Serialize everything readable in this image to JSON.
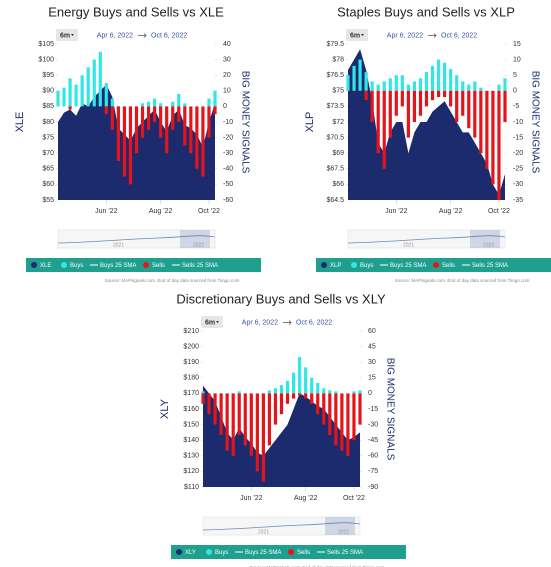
{
  "chart_data": [
    {
      "type": "area-bar",
      "title": "Energy Buys and Sells vs XLE",
      "range_button": "6m",
      "date_range": [
        "Apr 6, 2022",
        "Oct 6, 2022"
      ],
      "y_label": "XLE",
      "y2_label": "BIG MONEY SIGNALS",
      "x": [
        0,
        1,
        2,
        3,
        4,
        5,
        6,
        7,
        8,
        9,
        10,
        11,
        12,
        13,
        14,
        15,
        16,
        17,
        18,
        19,
        20,
        21,
        22,
        23,
        24,
        25,
        26
      ],
      "xlim": [
        0,
        26
      ],
      "xticks": [
        {
          "value": 8,
          "label": "Jun '22"
        },
        {
          "value": 17,
          "label": "Aug '22"
        },
        {
          "value": 25,
          "label": "Oct '22"
        }
      ],
      "ylim": [
        55,
        105
      ],
      "yticks": [
        {
          "value": 55,
          "label": "$55"
        },
        {
          "value": 60,
          "label": "$60"
        },
        {
          "value": 65,
          "label": "$65"
        },
        {
          "value": 70,
          "label": "$70"
        },
        {
          "value": 75,
          "label": "$75"
        },
        {
          "value": 80,
          "label": "$80"
        },
        {
          "value": 85,
          "label": "$85"
        },
        {
          "value": 90,
          "label": "$90"
        },
        {
          "value": 95,
          "label": "$95"
        },
        {
          "value": 100,
          "label": "$100"
        },
        {
          "value": 105,
          "label": "$105"
        }
      ],
      "y2lim": [
        -60,
        40
      ],
      "y2ticks": [
        -60,
        -50,
        -40,
        -30,
        -20,
        -10,
        0,
        10,
        20,
        30,
        40
      ],
      "series": [
        {
          "name": "XLE",
          "color": "#1c2a6e",
          "values": [
            80,
            83,
            84,
            82,
            86,
            85,
            88,
            90,
            92,
            88,
            78,
            76,
            74,
            78,
            80,
            82,
            84,
            80,
            77,
            82,
            84,
            79,
            78,
            76,
            72,
            80,
            86
          ]
        },
        {
          "name": "Buys",
          "color": "#33e6e6",
          "axis": "y2",
          "values": [
            10,
            12,
            18,
            14,
            20,
            25,
            30,
            35,
            15,
            5,
            0,
            0,
            0,
            0,
            2,
            3,
            5,
            2,
            0,
            3,
            8,
            2,
            0,
            0,
            0,
            5,
            10
          ]
        },
        {
          "name": "Sells",
          "color": "#e3151b",
          "axis": "y2",
          "values": [
            0,
            0,
            -2,
            0,
            0,
            0,
            0,
            0,
            -5,
            -15,
            -35,
            -45,
            -50,
            -30,
            -20,
            -15,
            -10,
            -20,
            -30,
            -15,
            -10,
            -25,
            -30,
            -40,
            -45,
            -20,
            -5
          ]
        }
      ],
      "sma_names": [
        "Buys 25 SMA",
        "Sells 25 SMA"
      ],
      "navigator_labels": [
        "2021",
        "2022"
      ],
      "source": "Source: MAPsignals.com, End of day data sourced from Tiingo.com"
    },
    {
      "type": "area-bar",
      "title": "Staples Buys and Sells vs XLP",
      "range_button": "6m",
      "date_range": [
        "Apr 6, 2022",
        "Oct 6, 2022"
      ],
      "y_label": "XLP",
      "y2_label": "BIG MONEY SIGNALS",
      "x": [
        0,
        1,
        2,
        3,
        4,
        5,
        6,
        7,
        8,
        9,
        10,
        11,
        12,
        13,
        14,
        15,
        16,
        17,
        18,
        19,
        20,
        21,
        22,
        23,
        24,
        25,
        26
      ],
      "xlim": [
        0,
        26
      ],
      "xticks": [
        {
          "value": 8,
          "label": "Jun '22"
        },
        {
          "value": 17,
          "label": "Aug '22"
        },
        {
          "value": 25,
          "label": "Oct '22"
        }
      ],
      "ylim": [
        64.5,
        79.5
      ],
      "yticks": [
        {
          "value": 64.5,
          "label": "$64.5"
        },
        {
          "value": 66,
          "label": "$66"
        },
        {
          "value": 67.5,
          "label": "$67.5"
        },
        {
          "value": 69,
          "label": "$69"
        },
        {
          "value": 70.5,
          "label": "$70.5"
        },
        {
          "value": 72,
          "label": "$72"
        },
        {
          "value": 73.5,
          "label": "$73.5"
        },
        {
          "value": 75,
          "label": "$75"
        },
        {
          "value": 76.5,
          "label": "$76.5"
        },
        {
          "value": 78,
          "label": "$78"
        },
        {
          "value": 79.5,
          "label": "$79.5"
        }
      ],
      "y2lim": [
        -35,
        15
      ],
      "y2ticks": [
        -35,
        -30,
        -25,
        -20,
        -15,
        -10,
        -5,
        0,
        5,
        10,
        15
      ],
      "series": [
        {
          "name": "XLP",
          "color": "#1c2a6e",
          "values": [
            77,
            78,
            79,
            77,
            74,
            70,
            69,
            71,
            72,
            72,
            69,
            71,
            72,
            72,
            73,
            73.5,
            74,
            73,
            72,
            71,
            71,
            70,
            69,
            68,
            66,
            65,
            67
          ]
        },
        {
          "name": "Buys",
          "color": "#33e6e6",
          "axis": "y2",
          "values": [
            5,
            8,
            10,
            6,
            3,
            2,
            3,
            4,
            5,
            5,
            2,
            3,
            4,
            6,
            8,
            10,
            9,
            7,
            5,
            3,
            2,
            3,
            1,
            0,
            0,
            2,
            4
          ]
        },
        {
          "name": "Sells",
          "color": "#e3151b",
          "axis": "y2",
          "values": [
            0,
            0,
            0,
            -3,
            -10,
            -20,
            -25,
            -15,
            -8,
            -5,
            -15,
            -10,
            -8,
            -5,
            -3,
            -2,
            -2,
            -5,
            -10,
            -8,
            -12,
            -15,
            -20,
            -25,
            -30,
            -35,
            -10
          ]
        }
      ],
      "sma_names": [
        "Buys 25 SMA",
        "Sells 25 SMA"
      ],
      "navigator_labels": [
        "2021",
        "2022"
      ],
      "source": "Source: MAPsignals.com, End of day data sourced from Tiingo.com"
    },
    {
      "type": "area-bar",
      "title": "Discretionary Buys and Sells vs XLY",
      "range_button": "6m",
      "date_range": [
        "Apr 6, 2022",
        "Oct 6, 2022"
      ],
      "y_label": "XLY",
      "y2_label": "BIG MONEY SIGNALS",
      "x": [
        0,
        1,
        2,
        3,
        4,
        5,
        6,
        7,
        8,
        9,
        10,
        11,
        12,
        13,
        14,
        15,
        16,
        17,
        18,
        19,
        20,
        21,
        22,
        23,
        24,
        25,
        26
      ],
      "xlim": [
        0,
        26
      ],
      "xticks": [
        {
          "value": 8,
          "label": "Jun '22"
        },
        {
          "value": 17,
          "label": "Aug '22"
        },
        {
          "value": 25,
          "label": "Oct '22"
        }
      ],
      "ylim": [
        110,
        210
      ],
      "yticks": [
        {
          "value": 110,
          "label": "$110"
        },
        {
          "value": 120,
          "label": "$120"
        },
        {
          "value": 130,
          "label": "$130"
        },
        {
          "value": 140,
          "label": "$140"
        },
        {
          "value": 150,
          "label": "$150"
        },
        {
          "value": 160,
          "label": "$160"
        },
        {
          "value": 170,
          "label": "$170"
        },
        {
          "value": 180,
          "label": "$180"
        },
        {
          "value": 190,
          "label": "$190"
        },
        {
          "value": 200,
          "label": "$200"
        },
        {
          "value": 210,
          "label": "$210"
        }
      ],
      "y2lim": [
        -90,
        60
      ],
      "y2ticks": [
        -90,
        -75,
        -60,
        -45,
        -30,
        -15,
        0,
        15,
        30,
        45,
        60
      ],
      "series": [
        {
          "name": "XLY",
          "color": "#1c2a6e",
          "values": [
            175,
            170,
            165,
            155,
            145,
            140,
            148,
            142,
            138,
            132,
            130,
            135,
            140,
            145,
            150,
            160,
            170,
            168,
            165,
            162,
            160,
            155,
            150,
            145,
            140,
            142,
            145
          ]
        },
        {
          "name": "Buys",
          "color": "#33e6e6",
          "axis": "y2",
          "values": [
            2,
            0,
            0,
            0,
            0,
            0,
            2,
            0,
            0,
            0,
            0,
            3,
            5,
            8,
            12,
            20,
            35,
            25,
            15,
            10,
            5,
            3,
            2,
            0,
            0,
            2,
            3
          ]
        },
        {
          "name": "Sells",
          "color": "#e3151b",
          "axis": "y2",
          "values": [
            -10,
            -20,
            -30,
            -40,
            -55,
            -60,
            -40,
            -50,
            -60,
            -75,
            -85,
            -50,
            -30,
            -20,
            -10,
            -5,
            -2,
            -5,
            -10,
            -20,
            -30,
            -40,
            -50,
            -55,
            -60,
            -45,
            -30
          ]
        }
      ],
      "sma_names": [
        "Buys 25 SMA",
        "Sells 25 SMA"
      ],
      "navigator_labels": [
        "2021",
        "2022"
      ],
      "source": "Source: MAPsignals.com, End of day data sourced from Tiingo.com"
    }
  ]
}
